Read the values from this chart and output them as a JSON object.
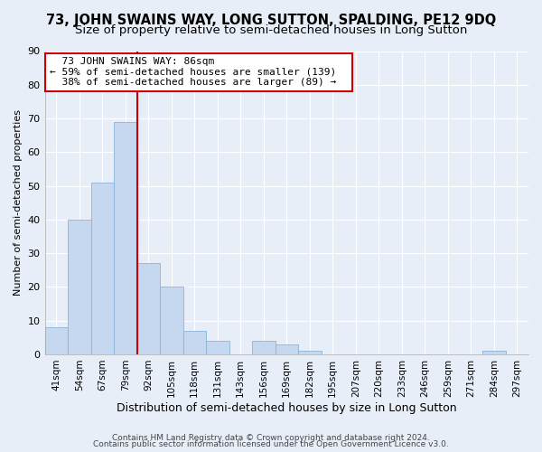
{
  "title": "73, JOHN SWAINS WAY, LONG SUTTON, SPALDING, PE12 9DQ",
  "subtitle": "Size of property relative to semi-detached houses in Long Sutton",
  "xlabel": "Distribution of semi-detached houses by size in Long Sutton",
  "ylabel": "Number of semi-detached properties",
  "bin_labels": [
    "41sqm",
    "54sqm",
    "67sqm",
    "79sqm",
    "92sqm",
    "105sqm",
    "118sqm",
    "131sqm",
    "143sqm",
    "156sqm",
    "169sqm",
    "182sqm",
    "195sqm",
    "207sqm",
    "220sqm",
    "233sqm",
    "246sqm",
    "259sqm",
    "271sqm",
    "284sqm",
    "297sqm"
  ],
  "bar_values": [
    8,
    40,
    51,
    69,
    27,
    20,
    7,
    4,
    0,
    4,
    3,
    1,
    0,
    0,
    0,
    0,
    0,
    0,
    0,
    1,
    0
  ],
  "bar_color": "#c5d8f0",
  "bar_edge_color": "#8ab4d8",
  "highlight_line_x_label": "92sqm",
  "highlight_line_color": "#cc0000",
  "ylim": [
    0,
    90
  ],
  "yticks": [
    0,
    10,
    20,
    30,
    40,
    50,
    60,
    70,
    80,
    90
  ],
  "annotation_title": "73 JOHN SWAINS WAY: 86sqm",
  "annotation_line1": "← 59% of semi-detached houses are smaller (139)",
  "annotation_line2": "38% of semi-detached houses are larger (89) →",
  "annotation_box_color": "#ffffff",
  "annotation_box_edge": "#cc0000",
  "footer_line1": "Contains HM Land Registry data © Crown copyright and database right 2024.",
  "footer_line2": "Contains public sector information licensed under the Open Government Licence v3.0.",
  "bg_color": "#e8eef8",
  "plot_bg_color": "#e8eef8",
  "grid_color": "#ffffff",
  "title_fontsize": 10.5,
  "subtitle_fontsize": 9.5
}
